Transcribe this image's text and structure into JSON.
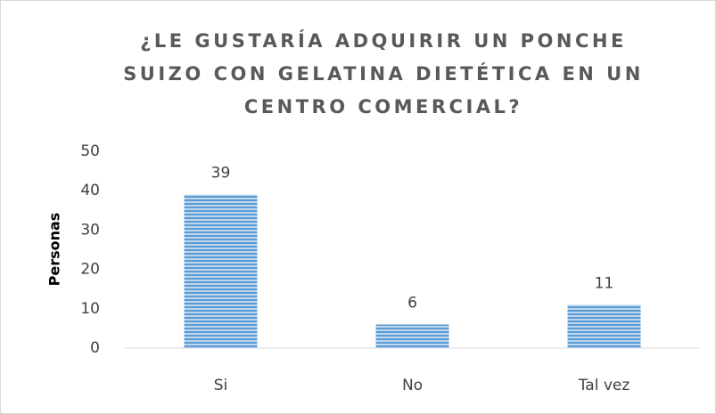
{
  "chart_data": {
    "type": "bar",
    "title": [
      "¿LE GUSTARÍA ADQUIRIR UN PONCHE",
      "SUIZO CON GELATINA DIETÉTICA EN UN",
      "CENTRO COMERCIAL?"
    ],
    "y_label": "Personas",
    "categories": [
      "Si",
      "No",
      "Tal vez"
    ],
    "values": [
      39,
      6,
      11
    ],
    "color": "#5b9bd5",
    "ylim": [
      0,
      50
    ],
    "yticks": [
      0,
      10,
      20,
      30,
      40,
      50
    ],
    "grid": false
  }
}
